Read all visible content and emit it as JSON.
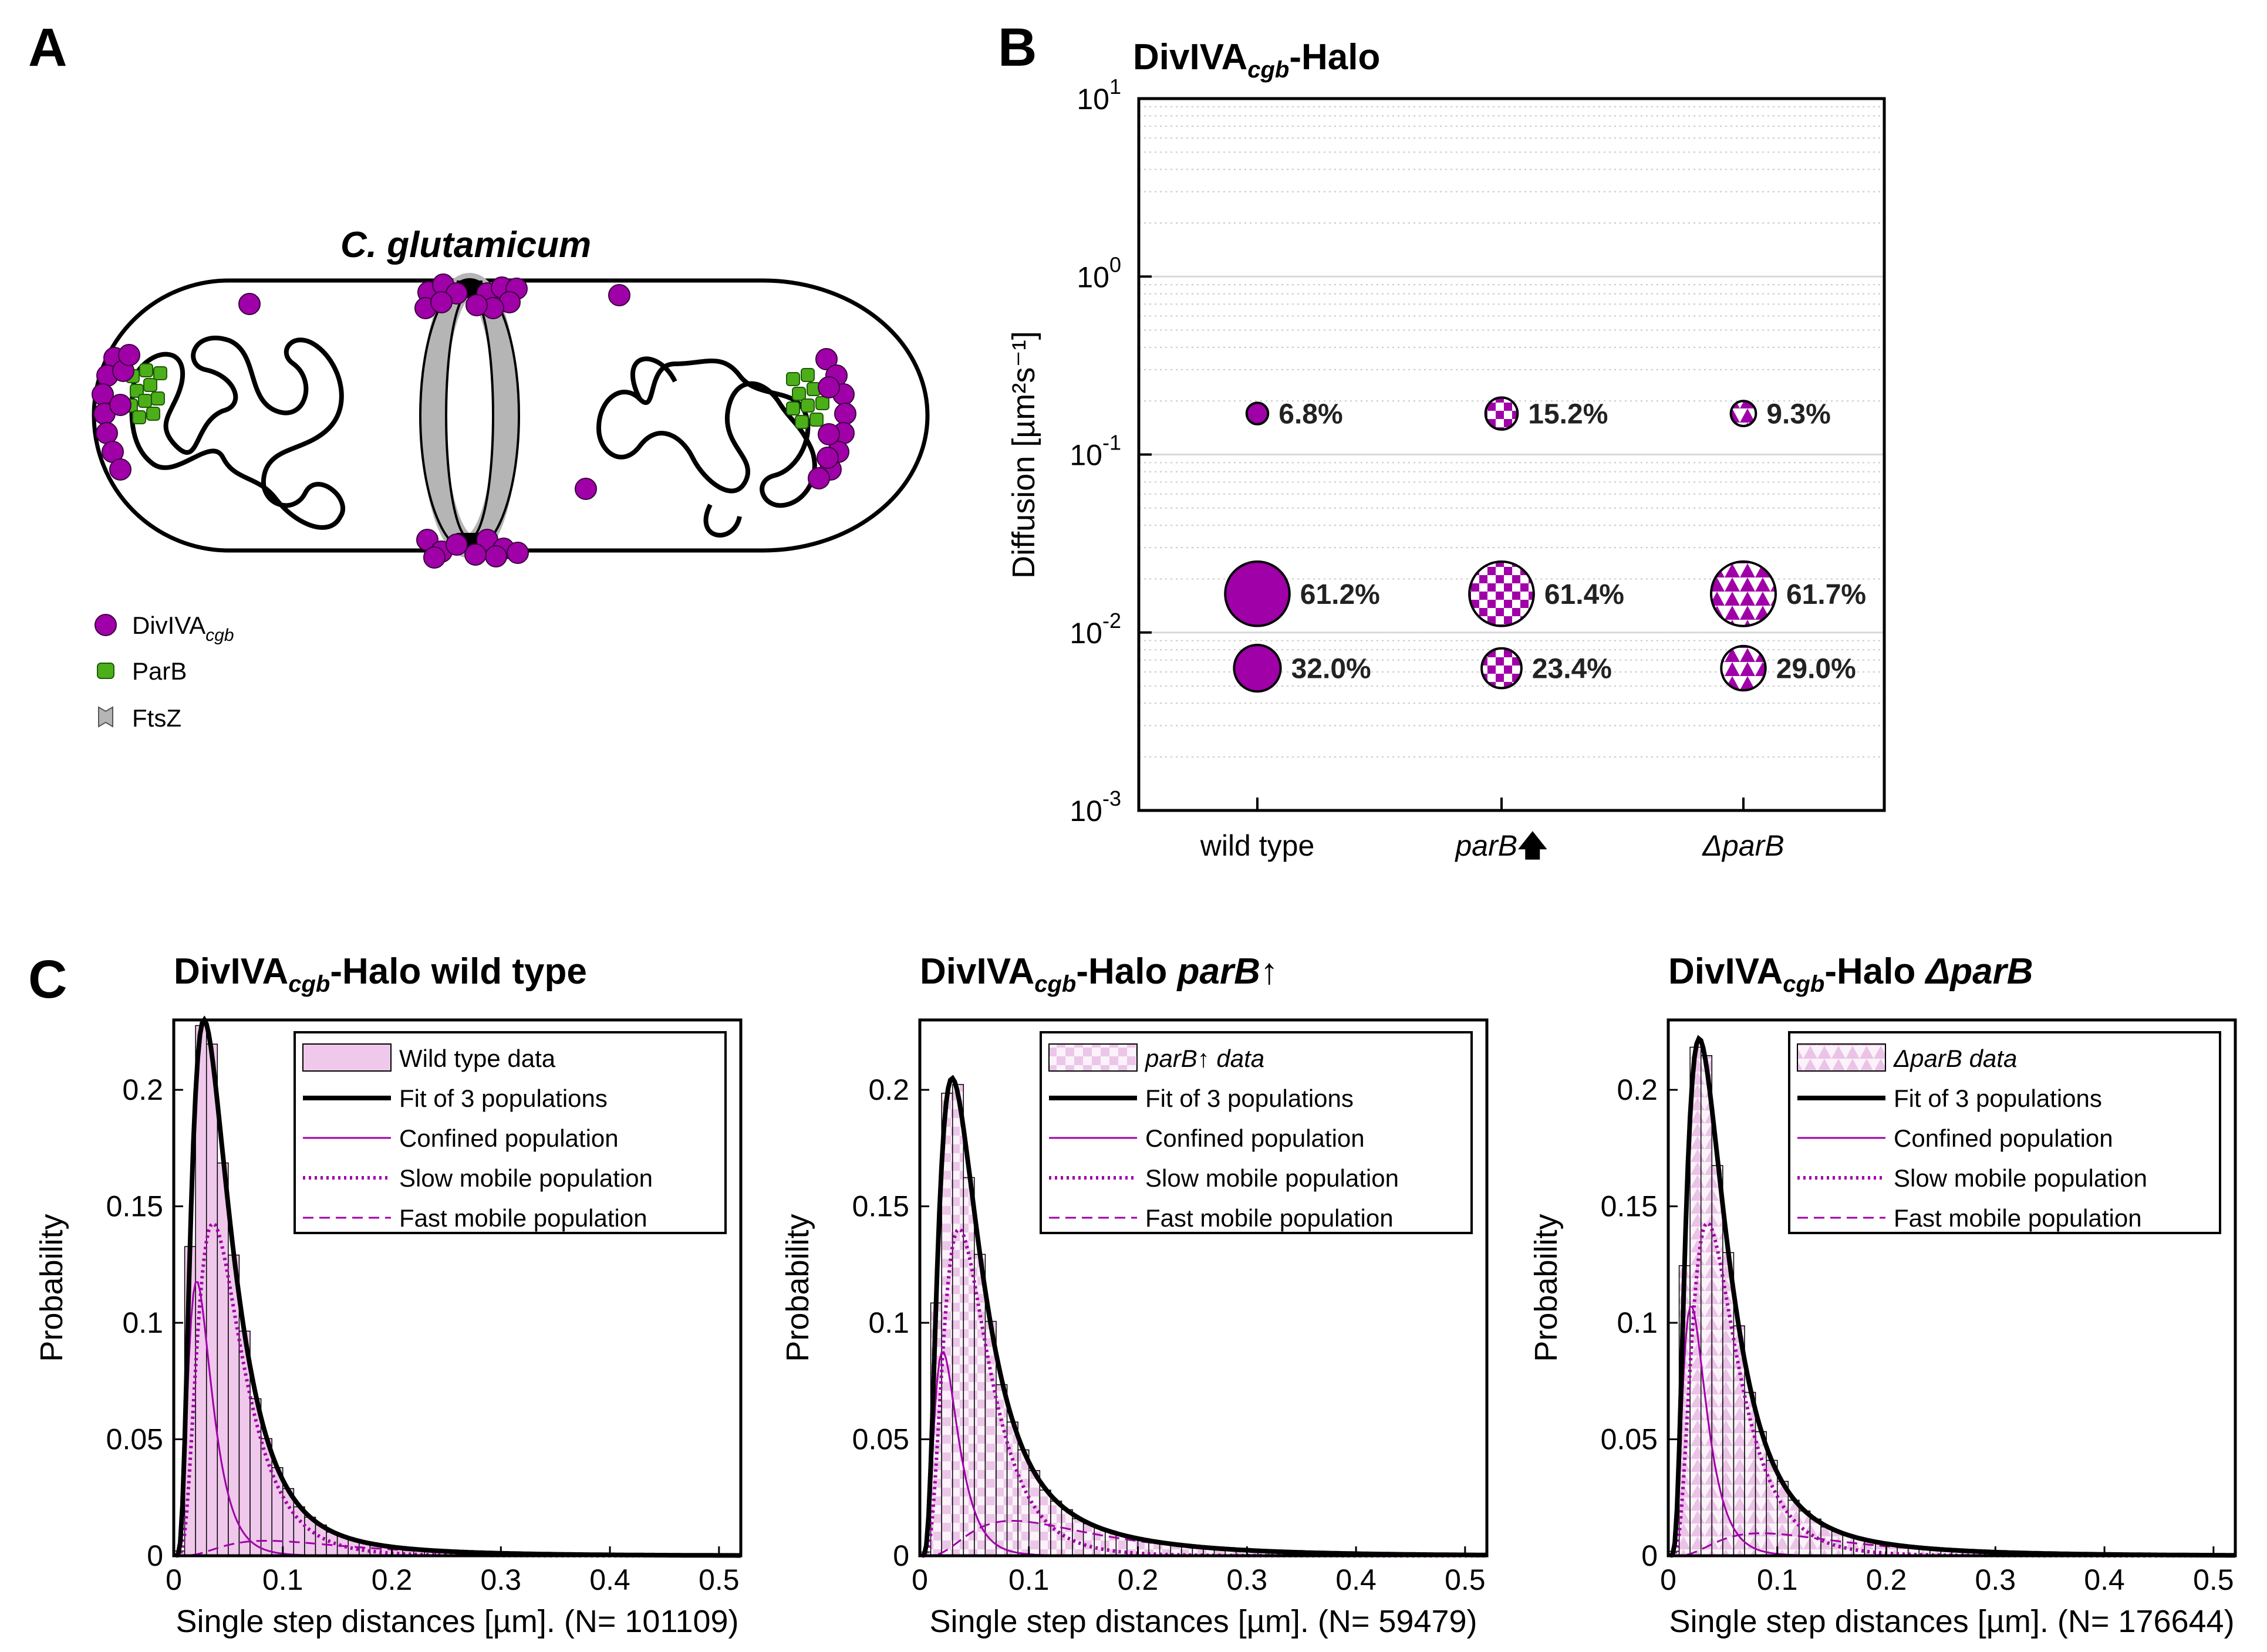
{
  "colors": {
    "magenta": "#a000a8",
    "light_magenta": "#f1cdee",
    "green": "#4caf1a",
    "grey": "#b5b5b5"
  },
  "panels": {
    "a": "A",
    "b": "B",
    "c": "C"
  },
  "panel_a": {
    "title": "C. glutamicum",
    "legend": [
      {
        "label": "DivIVA",
        "sub": "cgb",
        "icon": "divIVA-dot-icon"
      },
      {
        "label": "ParB",
        "sub": "",
        "icon": "parB-square-icon"
      },
      {
        "label": "FtsZ",
        "sub": "",
        "icon": "ftsZ-chevron-icon"
      }
    ]
  },
  "chart_data": [
    {
      "type": "scatter",
      "title_main": "DivIVA",
      "title_sub": "cgb",
      "title_rest": "-Halo",
      "ylabel": "Diffusion [µm²s⁻¹]",
      "yscale": "log",
      "ylim": [
        0.001,
        10
      ],
      "yticks": [
        {
          "base": "10",
          "exp": "1"
        },
        {
          "base": "10",
          "exp": "0"
        },
        {
          "base": "10",
          "exp": "-1"
        },
        {
          "base": "10",
          "exp": "-2"
        },
        {
          "base": "10",
          "exp": "-3"
        }
      ],
      "categories": [
        "wild type",
        "parB",
        "ΔparB"
      ],
      "points": [
        {
          "cat": 0,
          "pattern": "solid",
          "D": 0.17,
          "fraction": 6.8,
          "label": "6.8%"
        },
        {
          "cat": 0,
          "pattern": "solid",
          "D": 0.0165,
          "fraction": 61.2,
          "label": "61.2%"
        },
        {
          "cat": 0,
          "pattern": "solid",
          "D": 0.0063,
          "fraction": 32.0,
          "label": "32.0%"
        },
        {
          "cat": 1,
          "pattern": "checker",
          "D": 0.17,
          "fraction": 15.2,
          "label": "15.2%"
        },
        {
          "cat": 1,
          "pattern": "checker",
          "D": 0.0165,
          "fraction": 61.4,
          "label": "61.4%"
        },
        {
          "cat": 1,
          "pattern": "checker",
          "D": 0.0063,
          "fraction": 23.4,
          "label": "23.4%"
        },
        {
          "cat": 2,
          "pattern": "triangle",
          "D": 0.17,
          "fraction": 9.3,
          "label": "9.3%"
        },
        {
          "cat": 2,
          "pattern": "triangle",
          "D": 0.0165,
          "fraction": 61.7,
          "label": "61.7%"
        },
        {
          "cat": 2,
          "pattern": "triangle",
          "D": 0.0063,
          "fraction": 29.0,
          "label": "29.0%"
        }
      ]
    },
    {
      "type": "bar",
      "title_main": "DivIVA",
      "title_sub": "cgb",
      "title_rest": "-Halo wild type",
      "title_italic": false,
      "xlabel": "Single step distances [µm]. (N= 101109)",
      "ylabel": "Probability",
      "xlim": [
        0,
        0.52
      ],
      "ylim": [
        0,
        0.23
      ],
      "xticks": [
        "0",
        "0.1",
        "0.2",
        "0.3",
        "0.4",
        "0.5"
      ],
      "yticks": [
        "0",
        "0.05",
        "0.1",
        "0.15",
        "0.2"
      ],
      "pattern": "solid",
      "fit_peak": 0.23,
      "confined_peak": 0.11,
      "slow_peak": 0.133,
      "fast_peak": 0.006,
      "legend": [
        "Wild type data",
        "Fit of 3 populations",
        "Confined population",
        "Slow mobile population",
        "Fast mobile population"
      ]
    },
    {
      "type": "bar",
      "title_main": "DivIVA",
      "title_sub": "cgb",
      "title_rest": "-Halo ",
      "title_ital": "parB",
      "xlabel": "Single step distances [µm]. (N= 59479)",
      "ylabel": "Probability",
      "xlim": [
        0,
        0.52
      ],
      "ylim": [
        0,
        0.23
      ],
      "xticks": [
        "0",
        "0.1",
        "0.2",
        "0.3",
        "0.4",
        "0.5"
      ],
      "yticks": [
        "0",
        "0.05",
        "0.1",
        "0.15",
        "0.2"
      ],
      "pattern": "checker",
      "fit_peak": 0.205,
      "confined_peak": 0.082,
      "slow_peak": 0.131,
      "fast_peak": 0.014,
      "legend": [
        "parB↑ data",
        "Fit of 3 populations",
        "Confined population",
        "Slow mobile population",
        "Fast mobile population"
      ]
    },
    {
      "type": "bar",
      "title_main": "DivIVA",
      "title_sub": "cgb",
      "title_rest": "-Halo  ",
      "title_ital": "ΔparB",
      "xlabel": "Single step distances [µm]. (N= 176644)",
      "ylabel": "Probability",
      "xlim": [
        0,
        0.52
      ],
      "ylim": [
        0,
        0.23
      ],
      "xticks": [
        "0",
        "0.1",
        "0.2",
        "0.3",
        "0.4",
        "0.5"
      ],
      "yticks": [
        "0",
        "0.05",
        "0.1",
        "0.15",
        "0.2"
      ],
      "pattern": "triangle",
      "fit_peak": 0.222,
      "confined_peak": 0.1,
      "slow_peak": 0.133,
      "fast_peak": 0.009,
      "legend": [
        "ΔparB data",
        "Fit of 3 populations",
        "Confined population",
        "Slow mobile population",
        "Fast mobile population"
      ]
    }
  ]
}
